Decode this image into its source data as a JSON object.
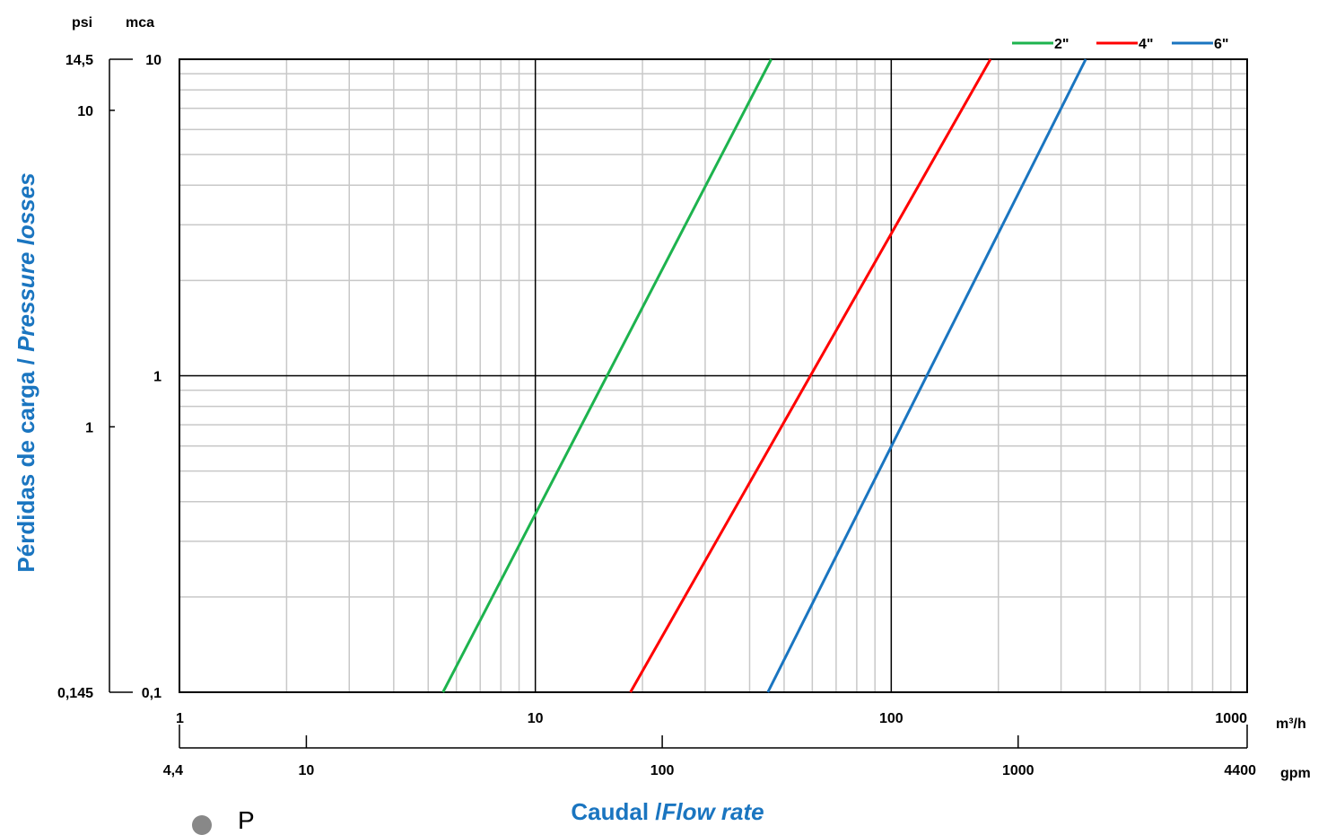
{
  "chart_data": {
    "type": "line",
    "x_scale": "log",
    "y_scale": "log",
    "xlim": [
      1,
      1000
    ],
    "ylim": [
      0.1,
      10
    ],
    "x_ticks": [
      "1",
      "10",
      "100",
      "1000"
    ],
    "y_ticks": [
      "0,1",
      "1",
      "10"
    ],
    "x_unit": "m³/h",
    "y_unit": "mca",
    "psi_unit": "psi",
    "psi_ticks": [
      "14,5",
      "10",
      "1",
      "0,145"
    ],
    "psi_values": [
      14.5,
      10,
      1,
      0.145
    ],
    "gpm_unit": "gpm",
    "gpm_ticks": [
      "4,4",
      "10",
      "100",
      "1000",
      "4400"
    ],
    "gpm_values": [
      4.4,
      10,
      100,
      1000,
      4400
    ],
    "ylabel_main": "Pérdidas de carga /",
    "ylabel_italic": "Pressure losses",
    "xlabel_main": "Caudal /",
    "xlabel_italic": "Flow rate",
    "grid": true,
    "legend_position": "top-right",
    "series": [
      {
        "name": "2\"",
        "color": "#1db34e",
        "x": [
          5.5,
          46
        ],
        "y": [
          0.1,
          10
        ]
      },
      {
        "name": "4\"",
        "color": "#ff0000",
        "x": [
          18.5,
          190
        ],
        "y": [
          0.1,
          10
        ]
      },
      {
        "name": "6\"",
        "color": "#1a75c0",
        "x": [
          45,
          352
        ],
        "y": [
          0.1,
          10
        ]
      }
    ]
  },
  "overlay": {
    "cursor_letter": "P"
  }
}
